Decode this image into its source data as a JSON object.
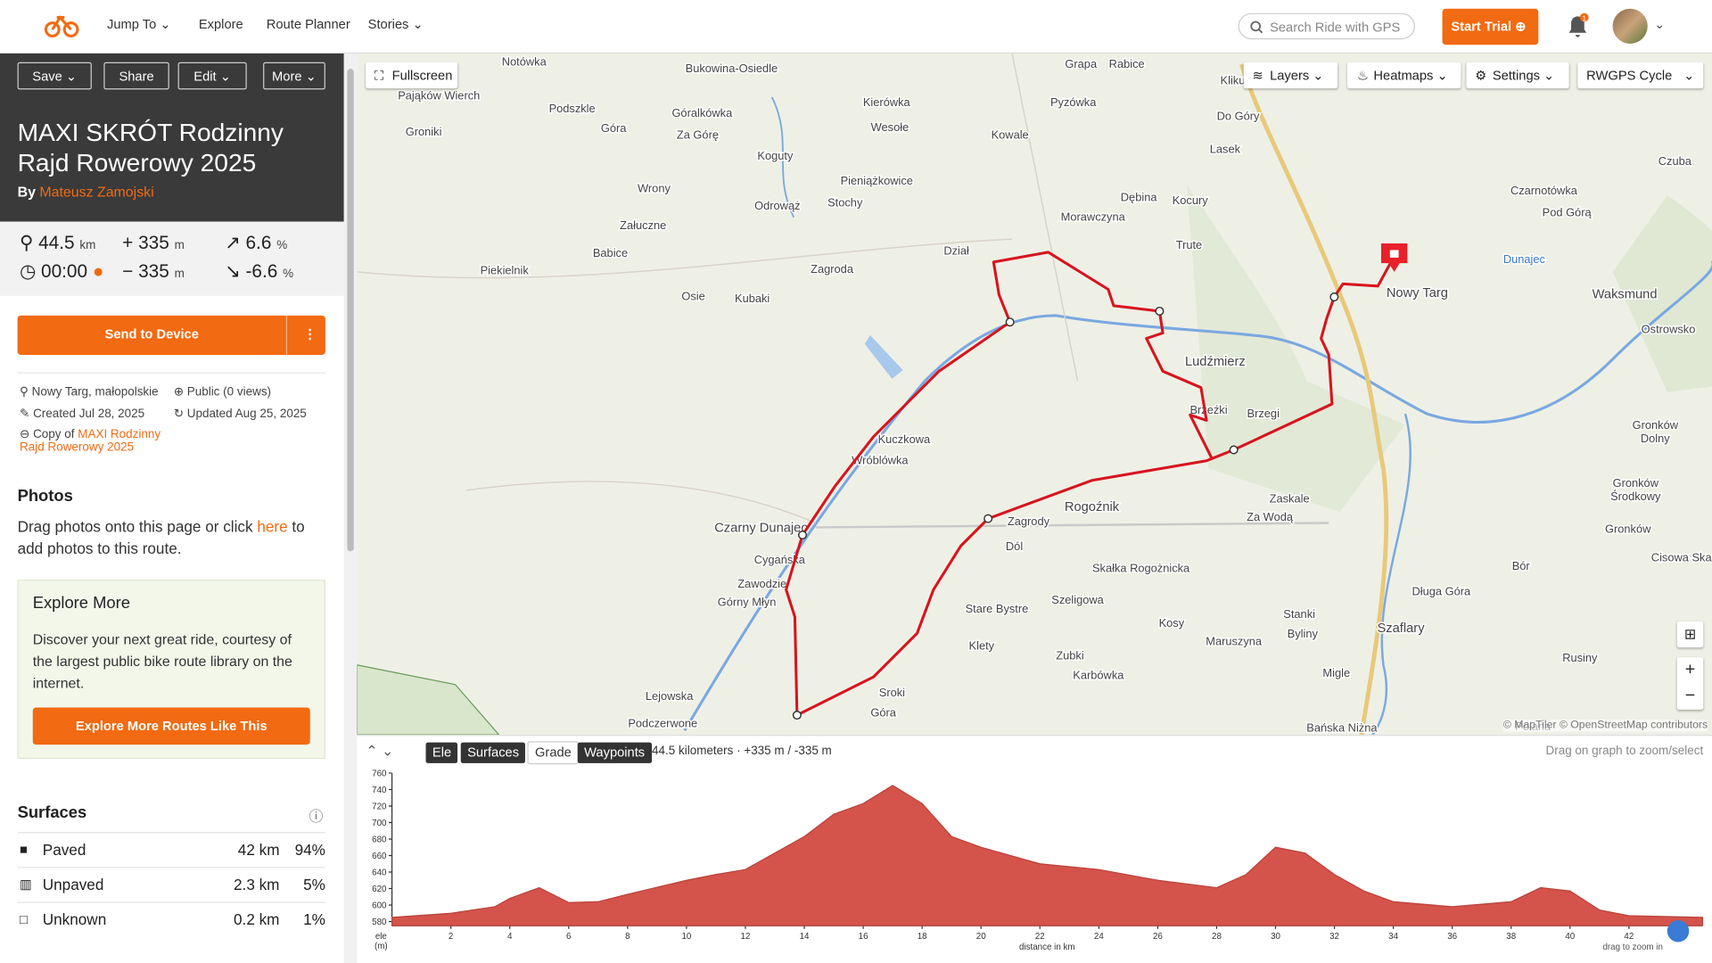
{
  "nav": {
    "items": [
      "Jump To",
      "Explore",
      "Route Planner",
      "Stories"
    ],
    "search_placeholder": "Search Ride with GPS",
    "start_trial": "Start Trial",
    "notifications": "1"
  },
  "route": {
    "actions": [
      "Save",
      "Share",
      "Edit",
      "More"
    ],
    "title": "MAXI SKRÓT Rodzinny Rajd Rowerowy 2025",
    "by": "By",
    "author": "Mateusz Zamojski",
    "stats": {
      "distance": "44.5",
      "distance_unit": "km",
      "gain": "335",
      "gain_unit": "m",
      "grade_up": "6.6",
      "grade_up_unit": "%",
      "time": "00:00",
      "loss": "335",
      "loss_unit": "m",
      "grade_down": "-6.6",
      "grade_down_unit": "%"
    },
    "send": "Send to Device",
    "location": "Nowy Targ, małopolskie",
    "visibility": "Public (0 views)",
    "created": "Created Jul 28, 2025",
    "updated": "Updated Aug 25, 2025",
    "copy_of": "Copy of",
    "copy_link": "MAXI Rodzinny Rajd Rowerowy 2025"
  },
  "photos": {
    "heading": "Photos",
    "text_before": "Drag photos onto this page or click",
    "link": "here",
    "text_after": "to add photos to this route."
  },
  "explore": {
    "heading": "Explore More",
    "text": "Discover your next great ride, courtesy of the largest public bike route library on the internet.",
    "button": "Explore More Routes Like This"
  },
  "surfaces": {
    "heading": "Surfaces",
    "rows": [
      [
        "Paved",
        "42 km",
        "94%"
      ],
      [
        "Unpaved",
        "2.3 km",
        "5%"
      ],
      [
        "Unknown",
        "0.2 km",
        "1%"
      ]
    ]
  },
  "map": {
    "fullscreen": "Fullscreen",
    "controls": [
      "Layers",
      "Heatmaps",
      "Settings",
      "RWGPS Cycle"
    ],
    "attribution": "© MapTiler © OpenStreetMap contributors",
    "labels": [
      "Notówka",
      "Bukowina-Osiedle",
      "Pająków Wierch",
      "Groniki",
      "Góralkówka",
      "Kierówka",
      "Podszkle",
      "Góra",
      "Za Górę",
      "Wesołe",
      "Kowale",
      "Pyzówka",
      "Grapa",
      "Rabice",
      "Lasek",
      "Do Góry",
      "Koguty",
      "Pieniążkowice",
      "Wrony",
      "Odrowąż",
      "Stochy",
      "Dębina",
      "Kocury",
      "Morawczyna",
      "Załuczne",
      "Babice",
      "Dział",
      "Trute",
      "Zagroda",
      "Piekielnik",
      "Osie",
      "Kubaki",
      "Nowy Targ",
      "Waksmund",
      "Ostrowsko",
      "Ludźmierz",
      "Brzeźki",
      "Brzegi",
      "Kuczkowa",
      "Wróblówka",
      "Czarny Dunajec",
      "Cygańska",
      "Zawodzie",
      "Górny Młyn",
      "Zaskale",
      "Za Wodą",
      "Rogoźnik",
      "Zagrody",
      "Dól",
      "Skałka Rogożnicka",
      "Szeligowa",
      "Stare Bystre",
      "Kosy",
      "Maruszyna",
      "Stanki",
      "Byliny",
      "Klety",
      "Zubki",
      "Karbówka",
      "Szaflary",
      "Migle",
      "Sroki",
      "Góra",
      "Lejowska",
      "Podczerwone",
      "Bańska Niżna",
      "Czuba",
      "Czarnotówka",
      "Pod Górą",
      "Gronków",
      "Dolny",
      "Gronków",
      "Środkowy",
      "Gronków",
      "Bór",
      "Długa Góra",
      "Cisowa Ska",
      "Rusiny",
      "Dunajec",
      "Kliku",
      "Polana"
    ]
  },
  "elevation": {
    "tabs": [
      "Ele",
      "Surfaces",
      "Grade",
      "Waypoints"
    ],
    "summary": "44.5 kilometers · +335 m / -335 m",
    "hint": "Drag on graph to zoom/select",
    "chart_data": {
      "type": "area",
      "color": "#d4534a",
      "ylabel": "ele",
      "ylabel_unit": "(m)",
      "xlabel": "distance in km",
      "note": "drag to zoom in",
      "x": [
        0,
        2,
        3.5,
        4,
        5,
        6,
        7,
        8,
        10,
        11,
        12,
        13,
        14,
        15,
        16,
        17,
        18,
        19,
        20,
        22,
        24,
        26,
        28,
        29,
        30,
        31,
        32,
        33,
        34,
        36,
        38,
        39,
        40,
        41,
        42,
        44.5
      ],
      "values": [
        585,
        590,
        598,
        608,
        621,
        603,
        604,
        613,
        630,
        637,
        643,
        663,
        683,
        710,
        723,
        745,
        723,
        683,
        670,
        650,
        643,
        630,
        621,
        637,
        670,
        663,
        637,
        617,
        604,
        598,
        604,
        621,
        617,
        594,
        587,
        585
      ],
      "xlim": [
        0,
        44.5
      ],
      "ylim": [
        575,
        760
      ],
      "xticks": [
        2,
        4,
        6,
        8,
        10,
        12,
        14,
        16,
        18,
        20,
        22,
        24,
        26,
        28,
        30,
        32,
        34,
        36,
        38,
        40,
        42
      ],
      "yticks": [
        580,
        600,
        620,
        640,
        660,
        680,
        700,
        720,
        740,
        760
      ]
    }
  }
}
